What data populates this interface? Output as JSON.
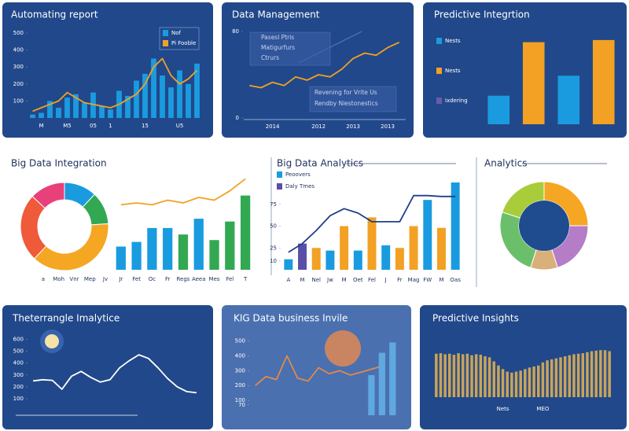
{
  "chart_data": [
    {
      "type": "combo",
      "title": "Automating report",
      "categories": [
        null,
        "M",
        null,
        null,
        "M5",
        null,
        null,
        "05",
        null,
        "1",
        null,
        null,
        null,
        "15",
        null,
        null,
        null,
        "U5",
        null,
        null
      ],
      "ylim": [
        0,
        500
      ],
      "yticks": [
        100,
        200,
        300,
        400,
        500
      ],
      "series": [
        {
          "name": "Nof",
          "kind": "bar",
          "color": "#1a9be0",
          "values": [
            20,
            30,
            100,
            60,
            120,
            140,
            90,
            150,
            70,
            50,
            160,
            130,
            220,
            260,
            350,
            250,
            180,
            280,
            200,
            320
          ]
        },
        {
          "name": "Pi Fooble",
          "kind": "line",
          "color": "#f2a124",
          "values": [
            40,
            60,
            80,
            100,
            150,
            120,
            90,
            80,
            70,
            60,
            80,
            110,
            140,
            200,
            300,
            350,
            250,
            200,
            230,
            280
          ]
        }
      ]
    },
    {
      "type": "combo",
      "title": "Data Management",
      "categories": [
        null,
        null,
        "2014",
        null,
        null,
        null,
        "2012",
        null,
        null,
        "2013",
        null,
        null,
        "2013",
        null
      ],
      "ylim": [
        0,
        80
      ],
      "yticks": [
        0,
        80
      ],
      "series": [
        {
          "kind": "line",
          "color": "#f2a124",
          "values": [
            30,
            28,
            33,
            30,
            38,
            35,
            40,
            38,
            45,
            55,
            60,
            58,
            65,
            70
          ]
        }
      ],
      "annotations": [
        "Pasesl Ptris",
        "Matigurfurs",
        "Ctrurs",
        "Revening for Vrite Us",
        "Rendby Niestonestics"
      ]
    },
    {
      "type": "combo",
      "title": "Predictive Integrtion",
      "ylim": [
        0,
        130
      ],
      "series": [
        {
          "kind": "bar",
          "color": "#1a9be0",
          "colors": [
            "#1a9be0",
            "#f2a124",
            "#1a9be0",
            "#f2a124"
          ],
          "values": [
            40,
            115,
            68,
            118
          ]
        }
      ],
      "legend": [
        {
          "name": "Nests",
          "color": "#1a9be0"
        },
        {
          "name": "Nests",
          "color": "#f2a124"
        },
        {
          "name": "Ixdering",
          "color": "#6a5ab0"
        }
      ]
    },
    {
      "type": "pie",
      "title": "Big Data Integration",
      "values": [
        12,
        12,
        38,
        25,
        13
      ],
      "colors": [
        "#1a9be0",
        "#33a852",
        "#f5a623",
        "#ef5a3a",
        "#e8407a"
      ]
    },
    {
      "type": "combo",
      "categories": [
        "a",
        "Moh",
        "Vnr",
        "Mep",
        "Jv",
        "Jr",
        "Fet",
        "Oc",
        "Fr",
        "Regs",
        "Aeea",
        "Mes",
        "Fel",
        "T"
      ],
      "ylim": [
        0,
        100
      ],
      "series": [
        {
          "kind": "bar",
          "color": "#1a9be0",
          "colors": [
            null,
            null,
            null,
            null,
            null,
            "#1a9be0",
            "#1a9be0",
            "#1a9be0",
            "#1a9be0",
            "#33a852",
            "#1a9be0",
            "#33a852",
            "#33a852",
            "#33a852"
          ],
          "values": [
            null,
            null,
            null,
            null,
            null,
            25,
            30,
            45,
            45,
            38,
            55,
            32,
            52,
            80
          ]
        },
        {
          "kind": "line",
          "color": "#f2a124",
          "values": [
            null,
            null,
            null,
            null,
            null,
            70,
            72,
            70,
            75,
            72,
            78,
            75,
            85,
            98
          ]
        }
      ]
    },
    {
      "type": "combo",
      "title": "Big Data Analytics",
      "categories": [
        "A",
        "M",
        "Nel",
        "Jw",
        "M",
        "Oet",
        "Fel",
        "J",
        "Fr",
        "Mag",
        "FW",
        "M",
        "Oas"
      ],
      "ylim": [
        0,
        100
      ],
      "yticks": [
        10,
        25,
        50,
        75
      ],
      "series": [
        {
          "kind": "bar",
          "color": "#1a9be0",
          "colors": [
            "#1a9be0",
            "#5a4fa8",
            "#f2a124",
            "#1a9be0",
            "#f2a124",
            "#1a9be0",
            "#f2a124",
            "#1a9be0",
            "#f2a124",
            "#f2a124",
            "#1a9be0",
            "#f2a124",
            "#1a9be0"
          ],
          "values": [
            12,
            30,
            25,
            22,
            50,
            22,
            60,
            28,
            25,
            50,
            80,
            48,
            100
          ]
        },
        {
          "kind": "line",
          "color": "#1f3f8a",
          "values": [
            20,
            30,
            45,
            62,
            70,
            65,
            55,
            55,
            55,
            85,
            85,
            84,
            84
          ]
        }
      ],
      "legend": [
        {
          "name": "Peoovers",
          "color": "#1a9be0"
        },
        {
          "name": "Daly Tmes",
          "color": "#5a4fa8"
        }
      ]
    },
    {
      "type": "pie",
      "title": "Analytics",
      "values": [
        25,
        20,
        10,
        25,
        20
      ],
      "colors": [
        "#f5a623",
        "#b57cc8",
        "#d9b07a",
        "#6cbf6a",
        "#a8cc3a"
      ]
    },
    {
      "type": "combo",
      "title": "Theterrangle Imalytice",
      "ylim": [
        0,
        650
      ],
      "yticks": [
        100,
        200,
        300,
        400,
        500,
        600
      ],
      "series": [
        {
          "kind": "line",
          "color": "#ffffff",
          "values": [
            250,
            260,
            255,
            180,
            290,
            330,
            280,
            240,
            260,
            360,
            420,
            470,
            440,
            360,
            270,
            200,
            160,
            150
          ]
        }
      ]
    },
    {
      "type": "combo",
      "title": "KIG Data business Invile",
      "ylim": [
        0,
        550
      ],
      "yticks": [
        70,
        100,
        200,
        300,
        400,
        500
      ],
      "series": [
        {
          "kind": "line",
          "color": "#e08a4a",
          "values": [
            200,
            260,
            240,
            400,
            250,
            230,
            320,
            280,
            300,
            270,
            290,
            310,
            330,
            null
          ]
        },
        {
          "kind": "bar",
          "color": "#5fa8e0",
          "values": [
            null,
            null,
            null,
            null,
            null,
            null,
            null,
            null,
            null,
            null,
            null,
            270,
            420,
            490
          ]
        }
      ]
    },
    {
      "type": "combo",
      "title": "Predictive Insights",
      "categories": [
        null,
        null,
        null,
        null,
        null,
        null,
        null,
        null,
        null,
        null,
        null,
        null,
        null,
        null,
        null,
        "Nets",
        null,
        null,
        null,
        null,
        null,
        null,
        null,
        null,
        "MEO",
        null,
        null,
        null,
        null,
        null,
        null,
        null,
        null,
        null,
        null,
        null,
        null,
        null,
        null,
        null
      ],
      "ylim": [
        0,
        100
      ],
      "series": [
        {
          "kind": "bar",
          "color": "#c9a45a",
          "values": [
            85,
            86,
            84,
            85,
            83,
            86,
            84,
            85,
            82,
            84,
            83,
            80,
            78,
            70,
            62,
            55,
            50,
            48,
            50,
            52,
            55,
            58,
            60,
            62,
            68,
            72,
            74,
            76,
            78,
            80,
            82,
            84,
            85,
            86,
            88,
            90,
            91,
            92,
            92,
            90
          ]
        }
      ]
    }
  ]
}
